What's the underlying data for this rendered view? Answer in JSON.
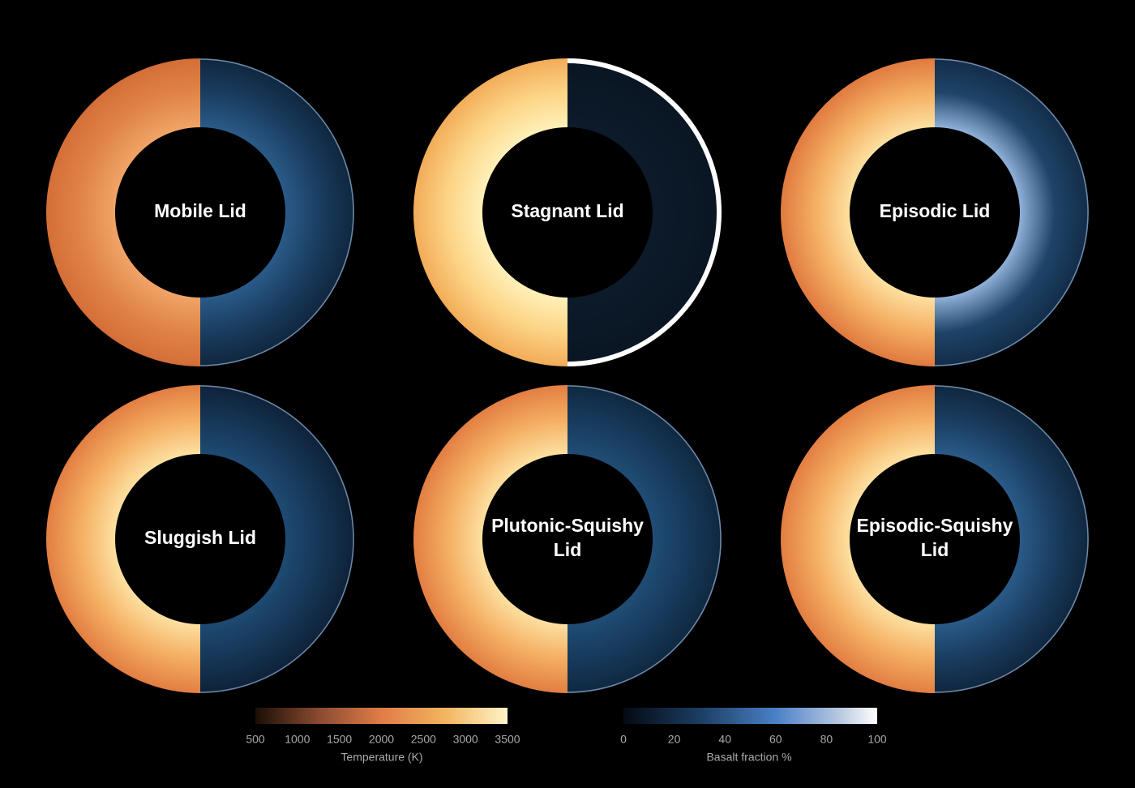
{
  "panels": [
    {
      "label": [
        "Mobile Lid"
      ]
    },
    {
      "label": [
        "Stagnant Lid"
      ]
    },
    {
      "label": [
        "Episodic Lid"
      ]
    },
    {
      "label": [
        "Sluggish Lid"
      ]
    },
    {
      "label": [
        "Plutonic-Squishy",
        "Lid"
      ]
    },
    {
      "label": [
        "Episodic-Squishy",
        "Lid"
      ]
    }
  ],
  "colorbars": [
    {
      "title": "Temperature (K)",
      "range": [
        500,
        3500
      ],
      "ticks": [
        500,
        1000,
        1500,
        2000,
        2500,
        3000,
        3500
      ]
    },
    {
      "title": "Basalt fraction %",
      "range": [
        0,
        100
      ],
      "ticks": [
        0,
        20,
        40,
        60,
        80,
        100
      ]
    }
  ]
}
